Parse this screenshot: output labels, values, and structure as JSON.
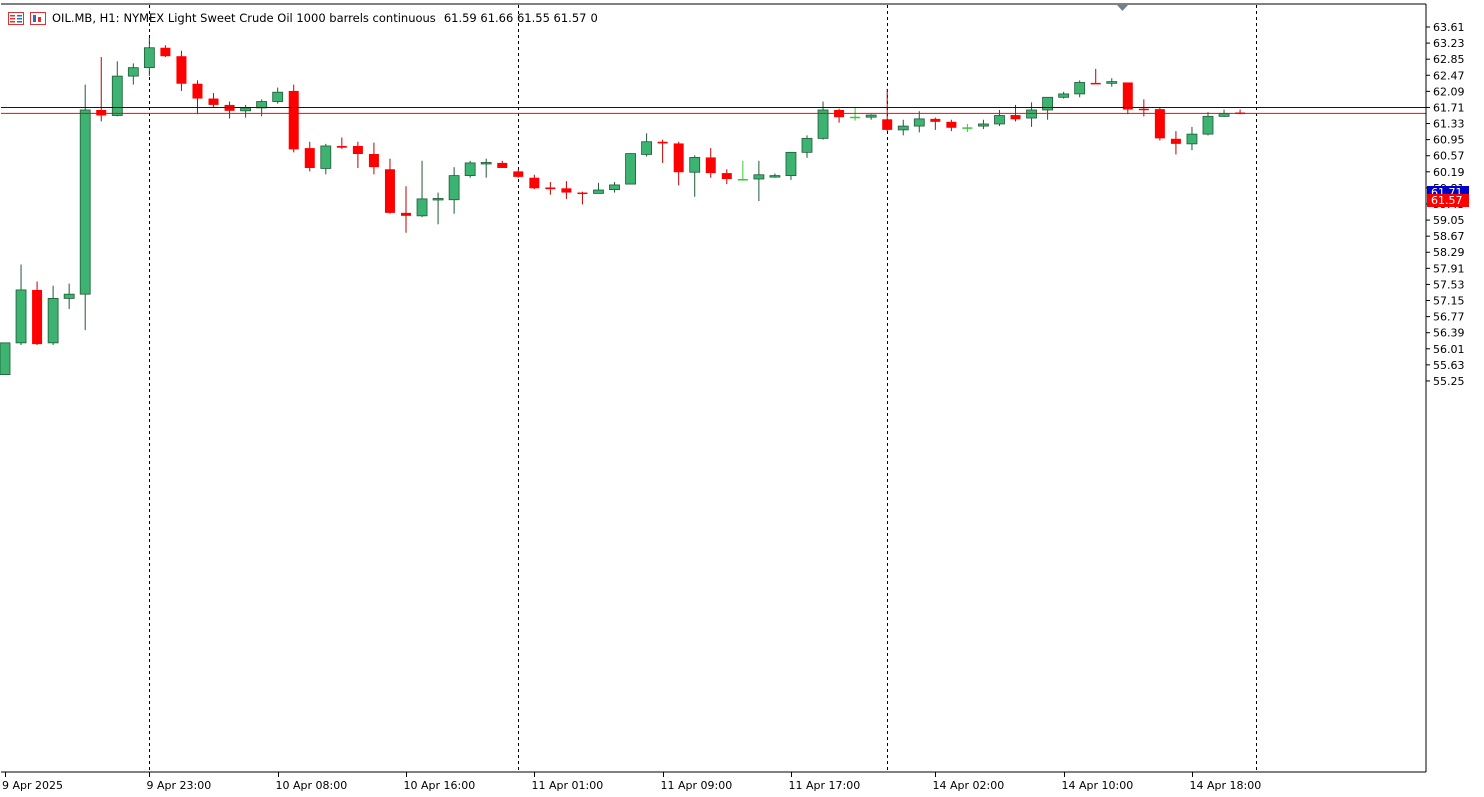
{
  "header": {
    "symbol": "OIL.MB, H1:",
    "description": "NYMEX Light Sweet Crude Oil 1000 barrels continuous",
    "ohlc": "61.59 61.66 61.55 61.57",
    "volume": "0"
  },
  "colors": {
    "bull": "#3cb371",
    "bear": "#ff0000",
    "doji": "#32cd32",
    "ask_line": "#0000cd",
    "bid_line": "#ff0000",
    "grid": "#000000",
    "background": "#ffffff"
  },
  "price_tags": {
    "ask": "61.71",
    "bid": "61.57"
  },
  "chart_data": {
    "type": "candlestick",
    "ylim": [
      55.0,
      63.85
    ],
    "y_ticks": [
      "63.61",
      "63.23",
      "62.85",
      "62.47",
      "62.09",
      "61.71",
      "61.33",
      "60.95",
      "60.57",
      "60.19",
      "59.81",
      "59.43",
      "59.05",
      "58.67",
      "58.29",
      "57.91",
      "57.53",
      "57.15",
      "56.77",
      "56.39",
      "56.01",
      "55.63",
      "55.25"
    ],
    "x_labels": [
      "9 Apr 2025",
      "9 Apr 23:00",
      "10 Apr 08:00",
      "10 Apr 16:00",
      "11 Apr 01:00",
      "11 Apr 09:00",
      "11 Apr 17:00",
      "14 Apr 02:00",
      "14 Apr 10:00",
      "14 Apr 18:00"
    ],
    "x_label_bar_index": [
      0,
      9,
      17,
      25,
      33,
      41,
      49,
      58,
      66,
      74
    ],
    "separator_bar_index": [
      9,
      32,
      55,
      78
    ],
    "ask": 61.71,
    "bid": 61.57,
    "candles": [
      {
        "o": 55.4,
        "h": 56.15,
        "l": 55.4,
        "c": 56.15
      },
      {
        "o": 56.15,
        "h": 58.0,
        "l": 56.1,
        "c": 57.4
      },
      {
        "o": 57.4,
        "h": 57.6,
        "l": 56.1,
        "c": 56.12
      },
      {
        "o": 56.15,
        "h": 57.5,
        "l": 56.1,
        "c": 57.2
      },
      {
        "o": 57.2,
        "h": 57.55,
        "l": 56.95,
        "c": 57.3
      },
      {
        "o": 57.3,
        "h": 62.25,
        "l": 56.45,
        "c": 61.65
      },
      {
        "o": 61.65,
        "h": 62.9,
        "l": 61.38,
        "c": 61.52
      },
      {
        "o": 61.52,
        "h": 62.8,
        "l": 61.5,
        "c": 62.45
      },
      {
        "o": 62.45,
        "h": 62.75,
        "l": 62.25,
        "c": 62.65
      },
      {
        "o": 62.65,
        "h": 63.35,
        "l": 62.45,
        "c": 63.12
      },
      {
        "o": 63.12,
        "h": 63.18,
        "l": 62.9,
        "c": 62.92
      },
      {
        "o": 62.92,
        "h": 63.05,
        "l": 62.1,
        "c": 62.27
      },
      {
        "o": 62.27,
        "h": 62.35,
        "l": 61.55,
        "c": 61.92
      },
      {
        "o": 61.92,
        "h": 62.05,
        "l": 61.7,
        "c": 61.77
      },
      {
        "o": 61.77,
        "h": 61.85,
        "l": 61.45,
        "c": 61.63
      },
      {
        "o": 61.63,
        "h": 61.77,
        "l": 61.47,
        "c": 61.7
      },
      {
        "o": 61.7,
        "h": 61.9,
        "l": 61.5,
        "c": 61.85
      },
      {
        "o": 61.85,
        "h": 62.18,
        "l": 61.8,
        "c": 62.07
      },
      {
        "o": 62.1,
        "h": 62.25,
        "l": 60.65,
        "c": 60.72
      },
      {
        "o": 60.75,
        "h": 60.9,
        "l": 60.2,
        "c": 60.28
      },
      {
        "o": 60.27,
        "h": 60.85,
        "l": 60.13,
        "c": 60.8
      },
      {
        "o": 60.8,
        "h": 61.0,
        "l": 60.73,
        "c": 60.76
      },
      {
        "o": 60.8,
        "h": 60.9,
        "l": 60.28,
        "c": 60.61
      },
      {
        "o": 60.61,
        "h": 60.88,
        "l": 60.13,
        "c": 60.3
      },
      {
        "o": 60.25,
        "h": 60.5,
        "l": 59.2,
        "c": 59.22
      },
      {
        "o": 59.22,
        "h": 59.85,
        "l": 58.75,
        "c": 59.15
      },
      {
        "o": 59.15,
        "h": 60.45,
        "l": 59.12,
        "c": 59.55
      },
      {
        "o": 59.55,
        "h": 59.7,
        "l": 58.95,
        "c": 59.56
      },
      {
        "o": 59.53,
        "h": 60.3,
        "l": 59.2,
        "c": 60.1
      },
      {
        "o": 60.1,
        "h": 60.45,
        "l": 60.05,
        "c": 60.4
      },
      {
        "o": 60.39,
        "h": 60.5,
        "l": 60.05,
        "c": 60.41
      },
      {
        "o": 60.4,
        "h": 60.45,
        "l": 60.28,
        "c": 60.28
      },
      {
        "o": 60.2,
        "h": 60.25,
        "l": 60.05,
        "c": 60.07
      },
      {
        "o": 60.05,
        "h": 60.12,
        "l": 59.78,
        "c": 59.8
      },
      {
        "o": 59.82,
        "h": 59.95,
        "l": 59.65,
        "c": 59.78
      },
      {
        "o": 59.8,
        "h": 59.97,
        "l": 59.55,
        "c": 59.7
      },
      {
        "o": 59.7,
        "h": 59.72,
        "l": 59.42,
        "c": 59.69
      },
      {
        "o": 59.68,
        "h": 59.93,
        "l": 59.68,
        "c": 59.76
      },
      {
        "o": 59.77,
        "h": 59.95,
        "l": 59.7,
        "c": 59.88
      },
      {
        "o": 59.9,
        "h": 60.63,
        "l": 59.9,
        "c": 60.62
      },
      {
        "o": 60.6,
        "h": 61.1,
        "l": 60.55,
        "c": 60.9
      },
      {
        "o": 60.9,
        "h": 60.95,
        "l": 60.4,
        "c": 60.86
      },
      {
        "o": 60.86,
        "h": 60.9,
        "l": 59.87,
        "c": 60.18
      },
      {
        "o": 60.18,
        "h": 60.58,
        "l": 59.6,
        "c": 60.53
      },
      {
        "o": 60.53,
        "h": 60.75,
        "l": 60.05,
        "c": 60.16
      },
      {
        "o": 60.16,
        "h": 60.25,
        "l": 59.9,
        "c": 60.02
      },
      {
        "o": 60.02,
        "h": 60.45,
        "l": 59.98,
        "c": 60.02
      },
      {
        "o": 60.02,
        "h": 60.45,
        "l": 59.5,
        "c": 60.12
      },
      {
        "o": 60.09,
        "h": 60.15,
        "l": 60.05,
        "c": 60.1
      },
      {
        "o": 60.1,
        "h": 60.65,
        "l": 60.0,
        "c": 60.65
      },
      {
        "o": 60.65,
        "h": 61.05,
        "l": 60.52,
        "c": 60.98
      },
      {
        "o": 60.98,
        "h": 61.85,
        "l": 60.95,
        "c": 61.65
      },
      {
        "o": 61.65,
        "h": 61.68,
        "l": 61.35,
        "c": 61.48
      },
      {
        "o": 61.49,
        "h": 61.72,
        "l": 61.4,
        "c": 61.49
      },
      {
        "o": 61.48,
        "h": 61.55,
        "l": 61.42,
        "c": 61.53
      },
      {
        "o": 61.43,
        "h": 62.15,
        "l": 61.15,
        "c": 61.18
      },
      {
        "o": 61.18,
        "h": 61.42,
        "l": 61.05,
        "c": 61.27
      },
      {
        "o": 61.27,
        "h": 61.62,
        "l": 61.12,
        "c": 61.44
      },
      {
        "o": 61.44,
        "h": 61.47,
        "l": 61.18,
        "c": 61.37
      },
      {
        "o": 61.37,
        "h": 61.42,
        "l": 61.15,
        "c": 61.23
      },
      {
        "o": 61.24,
        "h": 61.32,
        "l": 61.13,
        "c": 61.24
      },
      {
        "o": 61.27,
        "h": 61.42,
        "l": 61.2,
        "c": 61.32
      },
      {
        "o": 61.32,
        "h": 61.65,
        "l": 61.27,
        "c": 61.52
      },
      {
        "o": 61.53,
        "h": 61.77,
        "l": 61.38,
        "c": 61.43
      },
      {
        "o": 61.46,
        "h": 61.83,
        "l": 61.25,
        "c": 61.65
      },
      {
        "o": 61.65,
        "h": 61.95,
        "l": 61.42,
        "c": 61.95
      },
      {
        "o": 61.95,
        "h": 62.08,
        "l": 61.92,
        "c": 62.03
      },
      {
        "o": 62.03,
        "h": 62.35,
        "l": 61.95,
        "c": 62.3
      },
      {
        "o": 62.29,
        "h": 62.62,
        "l": 62.27,
        "c": 62.28
      },
      {
        "o": 62.28,
        "h": 62.4,
        "l": 62.2,
        "c": 62.32
      },
      {
        "o": 62.3,
        "h": 62.3,
        "l": 61.55,
        "c": 61.66
      },
      {
        "o": 61.68,
        "h": 61.9,
        "l": 61.5,
        "c": 61.65
      },
      {
        "o": 61.67,
        "h": 61.7,
        "l": 60.93,
        "c": 60.98
      },
      {
        "o": 60.97,
        "h": 61.15,
        "l": 60.6,
        "c": 60.85
      },
      {
        "o": 60.85,
        "h": 61.25,
        "l": 60.7,
        "c": 61.08
      },
      {
        "o": 61.08,
        "h": 61.6,
        "l": 61.05,
        "c": 61.5
      },
      {
        "o": 61.5,
        "h": 61.66,
        "l": 61.49,
        "c": 61.57
      },
      {
        "o": 61.59,
        "h": 61.66,
        "l": 61.55,
        "c": 61.57
      }
    ]
  }
}
